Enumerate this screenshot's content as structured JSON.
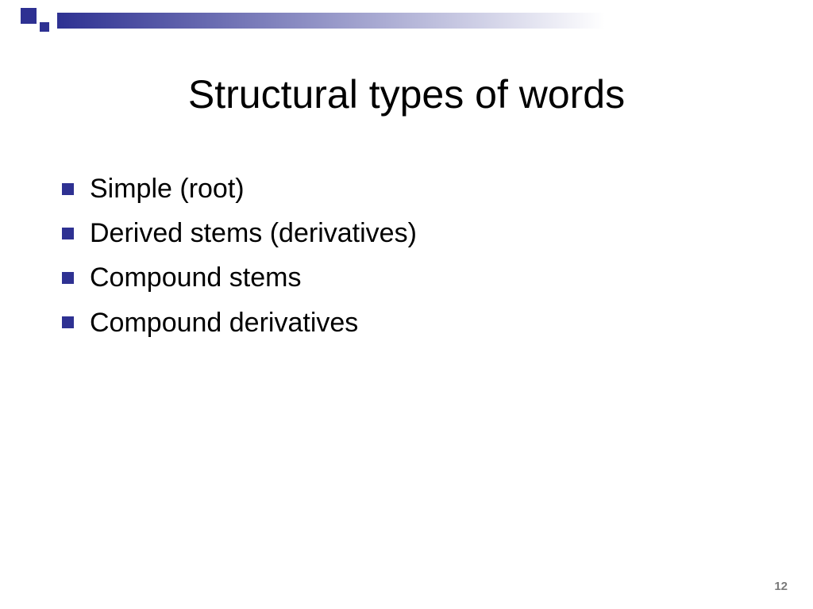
{
  "theme": {
    "accent_color": "#2e3192",
    "bullet_color": "#2e3192",
    "bar_gradient_from": "#2e3192",
    "bar_gradient_to": "#ffffff",
    "text_color": "#000000",
    "pagenum_color": "#7a7a7a",
    "background": "#ffffff",
    "title_fontsize": 50,
    "item_fontsize": 34
  },
  "title": "Structural types of words",
  "items": [
    "Simple (root)",
    "Derived stems (derivatives)",
    "Compound stems",
    "Compound derivatives"
  ],
  "page_number": "12"
}
